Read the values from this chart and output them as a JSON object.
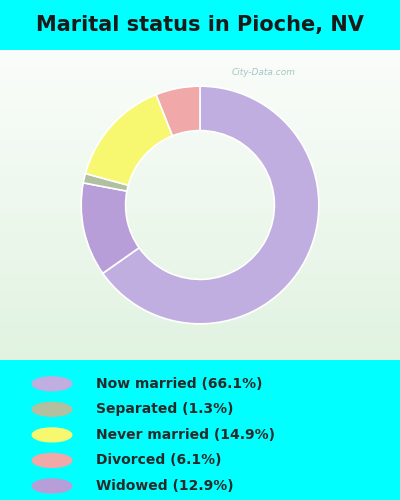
{
  "title": "Marital status in Pioche, NV",
  "title_fontsize": 15,
  "background_color": "#00FFFF",
  "slices": [
    {
      "label": "Now married (66.1%)",
      "value": 66.1,
      "color": "#c0aee0"
    },
    {
      "label": "Widowed (12.9%)",
      "value": 12.9,
      "color": "#b89ed8"
    },
    {
      "label": "Separated (1.3%)",
      "value": 1.3,
      "color": "#b0c0a0"
    },
    {
      "label": "Never married (14.9%)",
      "value": 14.9,
      "color": "#f8f870"
    },
    {
      "label": "Divorced (6.1%)",
      "value": 6.1,
      "color": "#f0a8a8"
    }
  ],
  "legend_items": [
    {
      "label": "Now married (66.1%)",
      "color": "#c0aee0"
    },
    {
      "label": "Separated (1.3%)",
      "color": "#b0c0a0"
    },
    {
      "label": "Never married (14.9%)",
      "color": "#f8f870"
    },
    {
      "label": "Divorced (6.1%)",
      "color": "#f0a8a8"
    },
    {
      "label": "Widowed (12.9%)",
      "color": "#b89ed8"
    }
  ],
  "watermark": "City-Data.com",
  "start_angle": 90,
  "donut_outer_r": 1.15,
  "donut_inner_r": 0.72
}
